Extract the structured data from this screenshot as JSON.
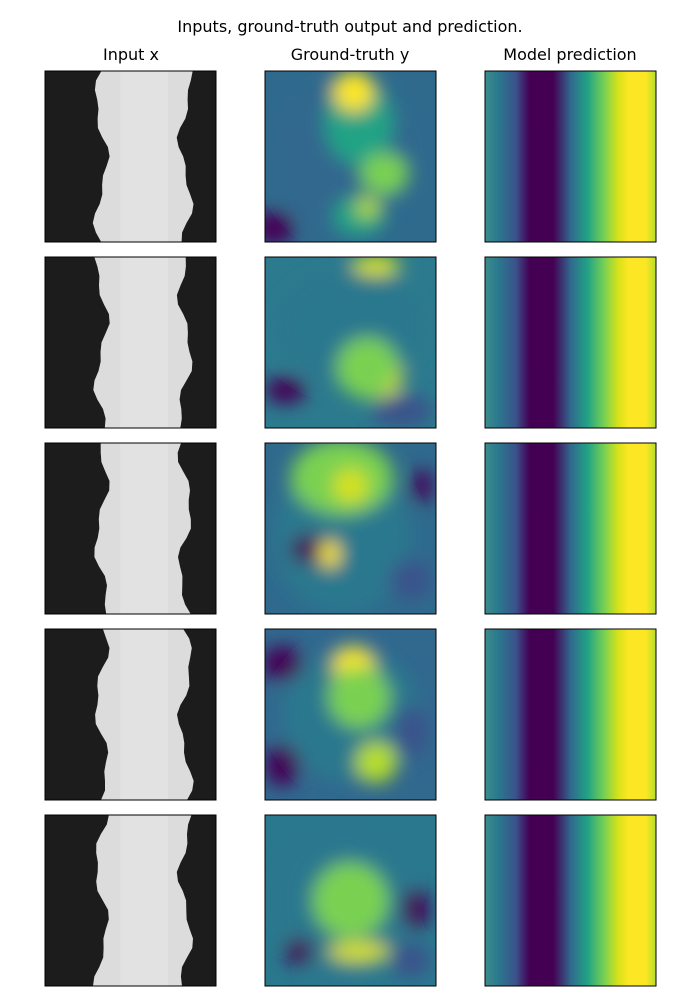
{
  "chart_data": {
    "type": "heatmap",
    "title": "Inputs, ground-truth output and prediction.",
    "columns": [
      "Input x",
      "Ground-truth y",
      "Model prediction"
    ],
    "rows": 5,
    "colormaps": {
      "Input x": "gray",
      "Ground-truth y": "viridis",
      "Model prediction": "viridis"
    },
    "ticks": "none",
    "grid": false,
    "legend": "none"
  }
}
